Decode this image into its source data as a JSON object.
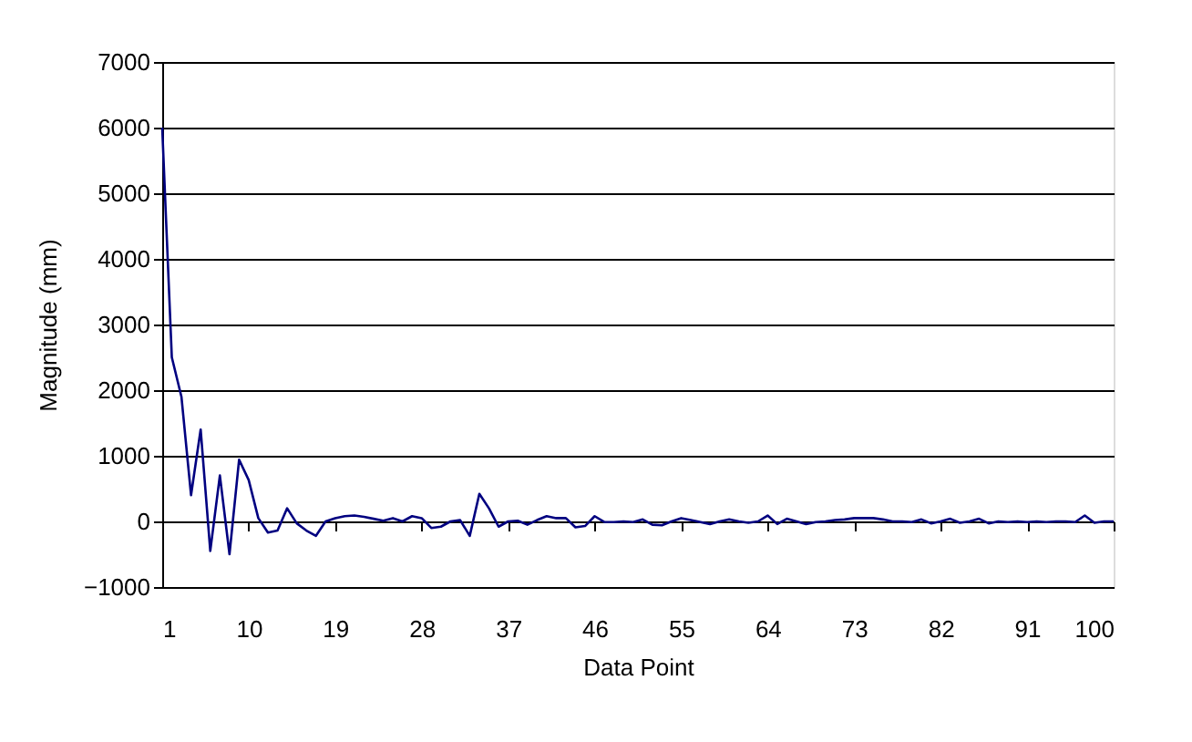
{
  "chart_data": {
    "type": "line",
    "xlabel": "Data Point",
    "ylabel": "Magnitude (mm)",
    "x": [
      1,
      2,
      3,
      4,
      5,
      6,
      7,
      8,
      9,
      10,
      11,
      12,
      13,
      14,
      15,
      16,
      17,
      18,
      19,
      20,
      21,
      22,
      23,
      24,
      25,
      26,
      27,
      28,
      29,
      30,
      31,
      32,
      33,
      34,
      35,
      36,
      37,
      38,
      39,
      40,
      41,
      42,
      43,
      44,
      45,
      46,
      47,
      48,
      49,
      50,
      51,
      52,
      53,
      54,
      55,
      56,
      57,
      58,
      59,
      60,
      61,
      62,
      63,
      64,
      65,
      66,
      67,
      68,
      69,
      70,
      71,
      72,
      73,
      74,
      75,
      76,
      77,
      78,
      79,
      80,
      81,
      82,
      83,
      84,
      85,
      86,
      87,
      88,
      89,
      90,
      91,
      92,
      93,
      94,
      95,
      96,
      97,
      98,
      99,
      100
    ],
    "series": [
      {
        "color": "#000080",
        "values": [
          6000,
          2500,
          1900,
          400,
          1400,
          -450,
          700,
          -500,
          940,
          630,
          50,
          -170,
          -140,
          200,
          -30,
          -140,
          -220,
          0,
          50,
          80,
          90,
          70,
          40,
          10,
          50,
          0,
          80,
          50,
          -100,
          -80,
          0,
          20,
          -220,
          420,
          200,
          -80,
          0,
          10,
          -50,
          20,
          80,
          50,
          50,
          -90,
          -70,
          80,
          -10,
          -10,
          0,
          -10,
          30,
          -50,
          -60,
          0,
          50,
          20,
          -10,
          -40,
          0,
          30,
          0,
          -20,
          0,
          90,
          -40,
          40,
          0,
          -40,
          -10,
          0,
          20,
          30,
          50,
          50,
          50,
          30,
          0,
          0,
          -10,
          30,
          -30,
          0,
          40,
          -20,
          0,
          40,
          -30,
          0,
          -10,
          0,
          -10,
          0,
          -10,
          0,
          0,
          -10,
          90,
          -20,
          0,
          0
        ]
      }
    ],
    "xlim": [
      1,
      100
    ],
    "xticks": [
      1,
      10,
      19,
      28,
      37,
      46,
      55,
      64,
      73,
      82,
      91,
      100
    ],
    "ylim": [
      -1000,
      7000
    ],
    "yticks": [
      -1000,
      0,
      1000,
      2000,
      3000,
      4000,
      5000,
      6000,
      7000
    ],
    "grid": "y",
    "marker": "none",
    "line_style": "solid"
  }
}
